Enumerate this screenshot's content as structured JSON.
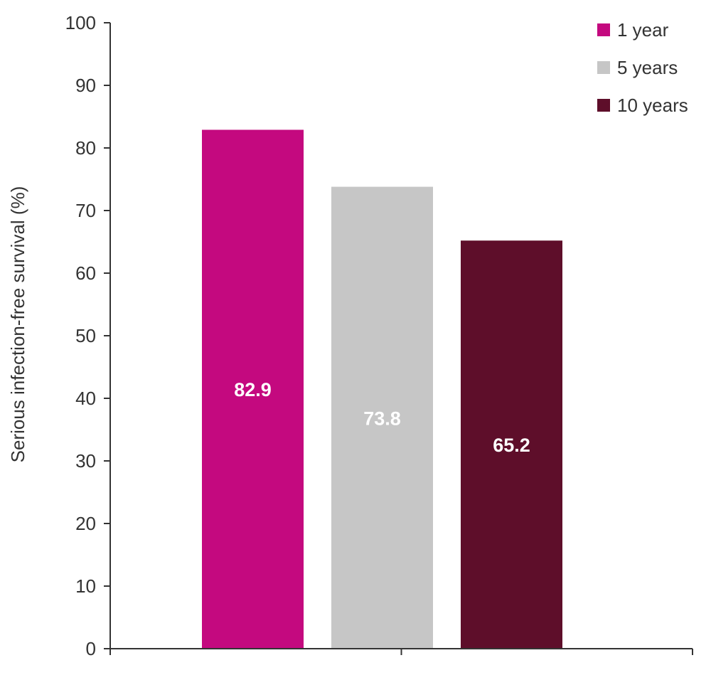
{
  "chart_data": {
    "type": "bar",
    "title": "",
    "xlabel": "",
    "ylabel": "Serious infection-free survival (%)",
    "ylim": [
      0,
      100
    ],
    "yticks": [
      0,
      10,
      20,
      30,
      40,
      50,
      60,
      70,
      80,
      90,
      100
    ],
    "grid": false,
    "legend_position": "top-right",
    "series": [
      {
        "name": "1 year",
        "value": 82.9,
        "label": "82.9",
        "color": "#C4097F"
      },
      {
        "name": "5 years",
        "value": 73.8,
        "label": "73.8",
        "color": "#C6C6C6"
      },
      {
        "name": "10 years",
        "value": 65.2,
        "label": "65.2",
        "color": "#5E0E2A"
      }
    ]
  }
}
